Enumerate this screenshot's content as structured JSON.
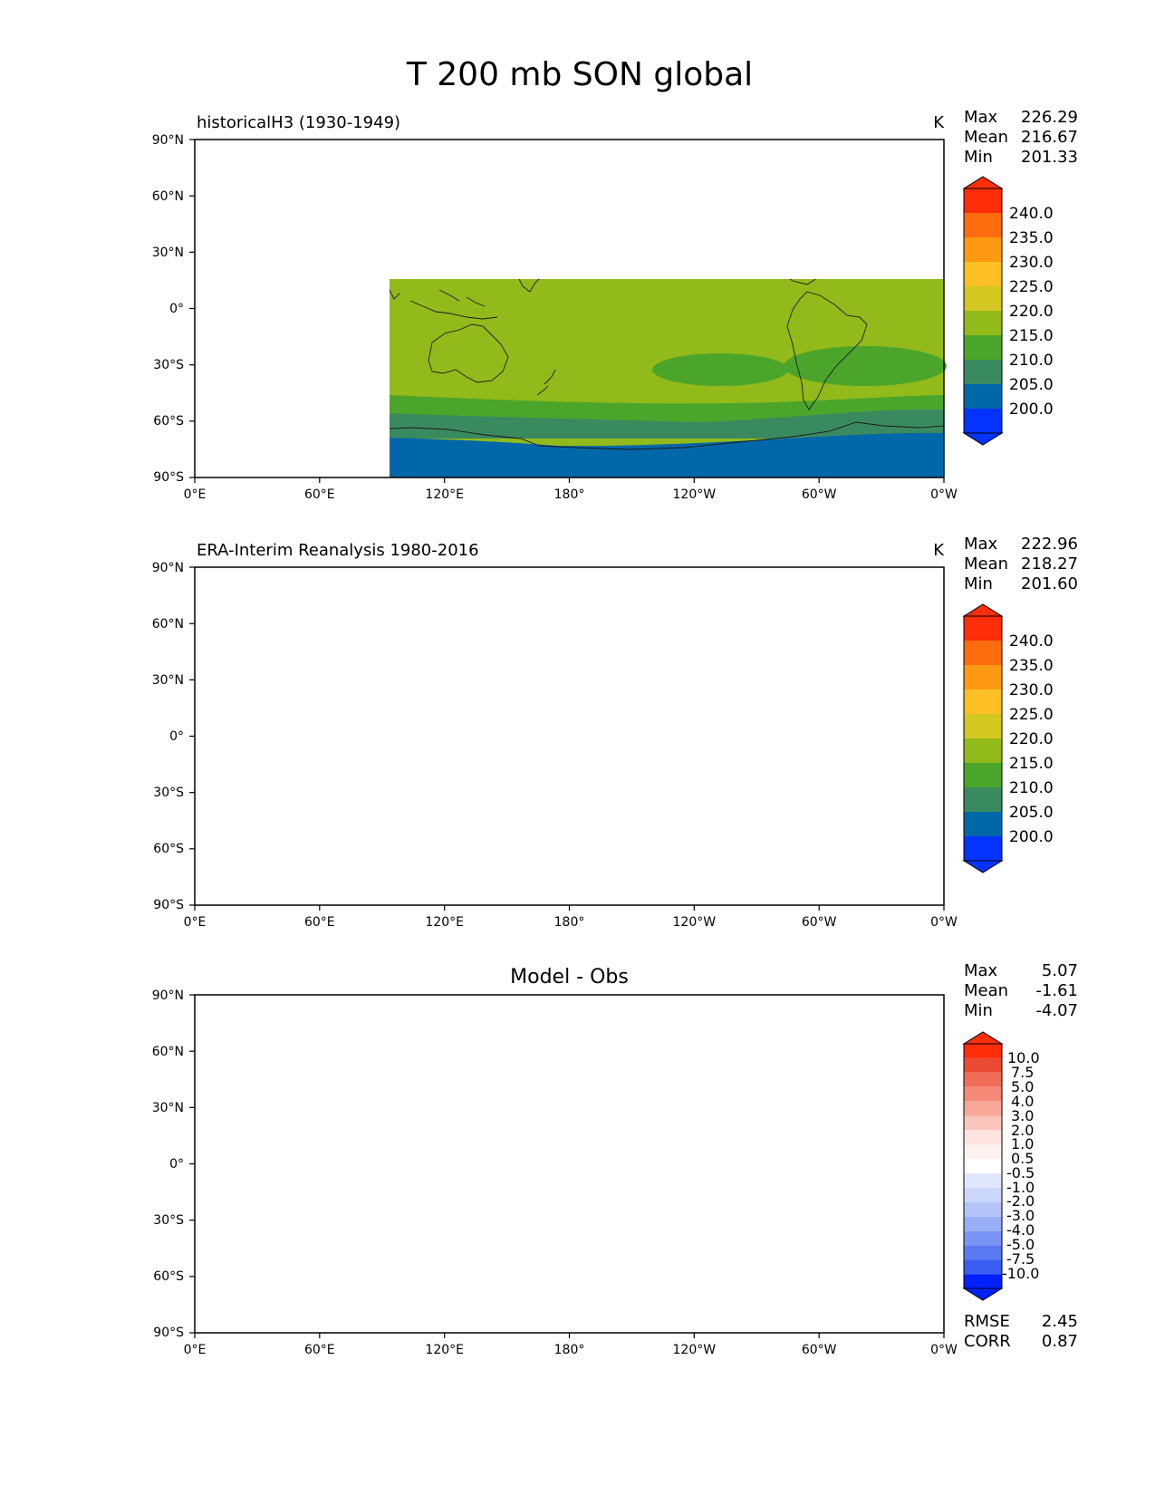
{
  "figure_title": "T 200 mb SON global",
  "lat_ticks": [
    "90°N",
    "60°N",
    "30°N",
    "0°",
    "30°S",
    "60°S",
    "90°S"
  ],
  "lon_ticks": [
    "0°E",
    "60°E",
    "120°E",
    "180°",
    "120°W",
    "60°W",
    "0°W"
  ],
  "colors": {
    "abs_levels": [
      "#0433ff",
      "#0067a8",
      "#3a8a60",
      "#4ba52a",
      "#92ba1a",
      "#d2c821",
      "#fcc024",
      "#fe9a12",
      "#fe6c10",
      "#fe2d0a"
    ],
    "diff_levels": [
      "#0020ff",
      "#3b5cf0",
      "#5c7af2",
      "#7a94f4",
      "#98aef6",
      "#b4c4f8",
      "#ccd8fb",
      "#e1e8fd",
      "#ffffff",
      "#fde3df",
      "#fbc6bd",
      "#f8a898",
      "#f58a78",
      "#f06d58",
      "#ea4a34",
      "#fe2d0a"
    ]
  },
  "chart_data": [
    {
      "type": "heatmap",
      "subtitle": "historicalH3 (1930-1949)",
      "units": "K",
      "stats": {
        "max_label": "Max",
        "max": "226.29",
        "mean_label": "Mean",
        "mean": "216.67",
        "min_label": "Min",
        "min": "201.33"
      },
      "colorbar_ticks": [
        "240.0",
        "235.0",
        "230.0",
        "225.0",
        "220.0",
        "215.0",
        "210.0",
        "205.0",
        "200.0"
      ],
      "xlim": [
        0,
        360
      ],
      "ylim": [
        -90,
        90
      ]
    },
    {
      "type": "heatmap",
      "subtitle": "ERA-Interim Reanalysis 1980-2016",
      "units": "K",
      "stats": {
        "max_label": "Max",
        "max": "222.96",
        "mean_label": "Mean",
        "mean": "218.27",
        "min_label": "Min",
        "min": "201.60"
      },
      "colorbar_ticks": [
        "240.0",
        "235.0",
        "230.0",
        "225.0",
        "220.0",
        "215.0",
        "210.0",
        "205.0",
        "200.0"
      ],
      "xlim": [
        0,
        360
      ],
      "ylim": [
        -90,
        90
      ]
    },
    {
      "type": "heatmap",
      "title": "Model - Obs",
      "stats": {
        "max_label": "Max",
        "max": "5.07",
        "mean_label": "Mean",
        "mean": "-1.61",
        "min_label": "Min",
        "min": "-4.07"
      },
      "colorbar_ticks": [
        "10.0",
        "7.5",
        "5.0",
        "4.0",
        "3.0",
        "2.0",
        "1.0",
        "0.5",
        "-0.5",
        "-1.0",
        "-2.0",
        "-3.0",
        "-4.0",
        "-5.0",
        "-7.5",
        "-10.0"
      ],
      "metrics": {
        "rmse_label": "RMSE",
        "rmse": "2.45",
        "corr_label": "CORR",
        "corr": "0.87"
      },
      "xlim": [
        0,
        360
      ],
      "ylim": [
        -90,
        90
      ]
    }
  ]
}
